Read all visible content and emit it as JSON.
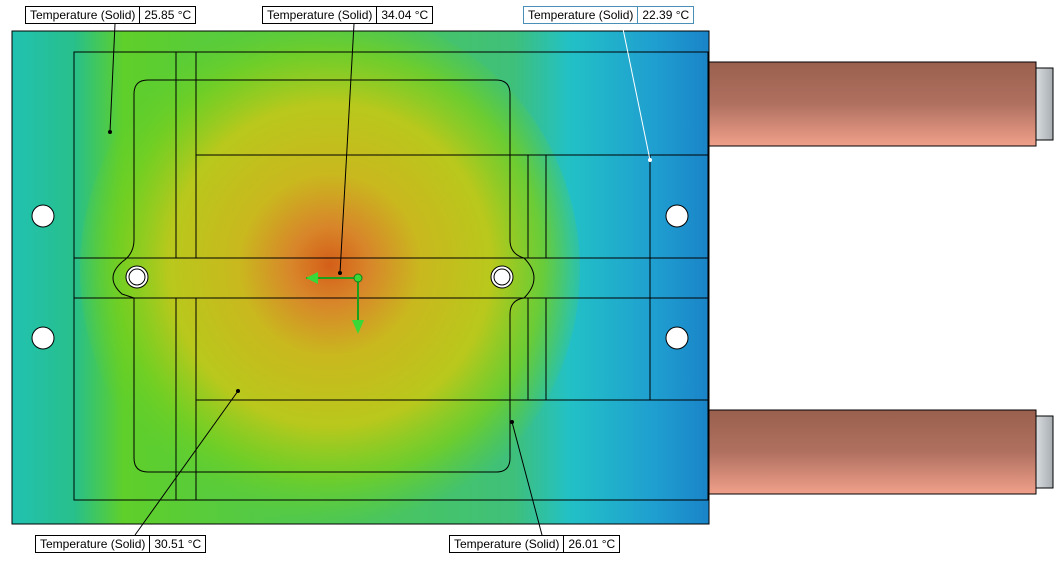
{
  "probes": [
    {
      "label": "Temperature (Solid)",
      "value": "25.85 °C",
      "selected": false
    },
    {
      "label": "Temperature (Solid)",
      "value": "34.04 °C",
      "selected": false
    },
    {
      "label": "Temperature (Solid)",
      "value": "22.39 °C",
      "selected": true
    },
    {
      "label": "Temperature (Solid)",
      "value": "30.51 °C",
      "selected": false
    },
    {
      "label": "Temperature (Solid)",
      "value": "26.01 °C",
      "selected": false
    }
  ],
  "colors": {
    "hot": "#d4611a",
    "warm": "#c9b91a",
    "mid": "#7fcf1c",
    "cool": "#21c6bd",
    "cold": "#1a7fc4",
    "pipe": "#b07060"
  }
}
